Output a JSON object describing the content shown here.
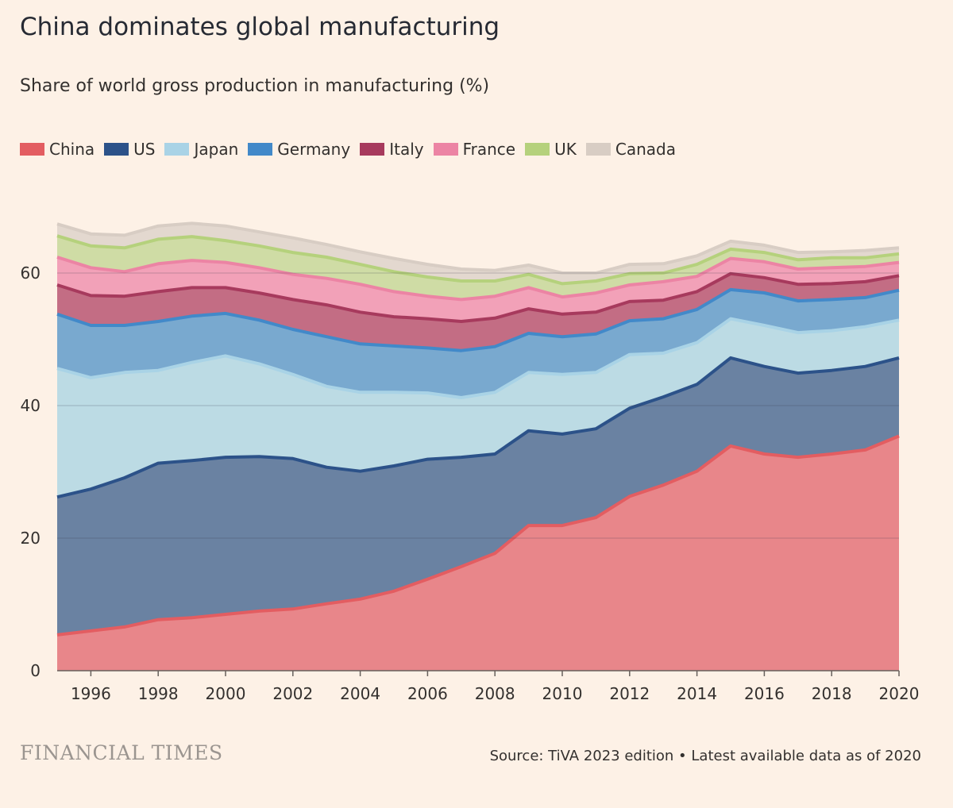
{
  "title": "China dominates global manufacturing",
  "subtitle": "Share of world gross production in manufacturing (%)",
  "footer": {
    "brand": "FINANCIAL TIMES",
    "source": "Source: TiVA 2023 edition • Latest available data as of 2020"
  },
  "background": "#fdf1e6",
  "chart_data": {
    "type": "area",
    "stacked": true,
    "title": "China dominates global manufacturing",
    "subtitle": "Share of world gross production in manufacturing (%)",
    "xlabel": "",
    "ylabel": "",
    "ylim": [
      0,
      70
    ],
    "xlim": [
      1995,
      2020
    ],
    "grid": true,
    "legend_position": "top-left",
    "yticks": [
      0,
      20,
      40,
      60
    ],
    "xticks": [
      1996,
      1998,
      2000,
      2002,
      2004,
      2006,
      2008,
      2010,
      2012,
      2014,
      2016,
      2018,
      2020
    ],
    "x": [
      1995,
      1996,
      1997,
      1998,
      1999,
      2000,
      2001,
      2002,
      2003,
      2004,
      2005,
      2006,
      2007,
      2008,
      2009,
      2010,
      2011,
      2012,
      2013,
      2014,
      2015,
      2016,
      2017,
      2018,
      2019,
      2020
    ],
    "series": [
      {
        "name": "China",
        "fill": "#e8868a",
        "line": "#e35d61",
        "values": [
          5.4,
          6.0,
          6.6,
          7.7,
          8.0,
          8.5,
          9.0,
          9.3,
          10.1,
          10.8,
          12.0,
          13.8,
          15.7,
          17.7,
          21.9,
          21.9,
          23.1,
          26.3,
          28.0,
          30.1,
          33.9,
          32.7,
          32.2,
          32.7,
          33.3,
          35.4
        ]
      },
      {
        "name": "US",
        "fill": "#6a82a2",
        "line": "#2c5289",
        "values": [
          20.8,
          21.4,
          22.5,
          23.6,
          23.7,
          23.7,
          23.3,
          22.7,
          20.6,
          19.3,
          18.9,
          18.1,
          16.5,
          15.0,
          14.3,
          13.8,
          13.4,
          13.3,
          13.3,
          13.1,
          13.3,
          13.2,
          12.7,
          12.6,
          12.6,
          11.8
        ]
      },
      {
        "name": "Japan",
        "fill": "#bcdbe4",
        "line": "#a9d3e6",
        "values": [
          19.4,
          16.8,
          15.9,
          14.0,
          14.8,
          15.3,
          14.0,
          12.7,
          12.2,
          11.9,
          11.1,
          10.0,
          9.0,
          9.3,
          8.8,
          9.0,
          8.5,
          8.1,
          6.6,
          6.3,
          5.9,
          6.2,
          6.1,
          6.0,
          6.0,
          5.7
        ]
      },
      {
        "name": "Germany",
        "fill": "#79a9cf",
        "line": "#4289c9",
        "values": [
          8.2,
          7.9,
          7.1,
          7.4,
          7.0,
          6.4,
          6.6,
          6.8,
          7.5,
          7.3,
          7.0,
          6.8,
          7.1,
          6.9,
          5.9,
          5.7,
          5.8,
          5.1,
          5.2,
          5.0,
          4.4,
          4.9,
          4.8,
          4.7,
          4.4,
          4.5
        ]
      },
      {
        "name": "Italy",
        "fill": "#c36d84",
        "line": "#a73a5d",
        "values": [
          4.4,
          4.5,
          4.4,
          4.5,
          4.3,
          3.9,
          4.1,
          4.5,
          4.8,
          4.8,
          4.4,
          4.4,
          4.4,
          4.3,
          3.7,
          3.4,
          3.3,
          2.9,
          2.8,
          2.7,
          2.4,
          2.3,
          2.5,
          2.4,
          2.4,
          2.2
        ]
      },
      {
        "name": "France",
        "fill": "#f2a1b8",
        "line": "#ec84a4",
        "values": [
          4.2,
          4.2,
          3.7,
          4.2,
          4.1,
          3.8,
          3.8,
          3.8,
          4.0,
          4.2,
          3.8,
          3.4,
          3.3,
          3.3,
          3.2,
          2.6,
          2.9,
          2.5,
          2.8,
          2.3,
          2.3,
          2.4,
          2.3,
          2.4,
          2.3,
          2.0
        ]
      },
      {
        "name": "UK",
        "fill": "#cfdca5",
        "line": "#b5d17c",
        "values": [
          3.2,
          3.3,
          3.6,
          3.7,
          3.6,
          3.3,
          3.3,
          3.3,
          3.2,
          3.0,
          3.0,
          2.9,
          2.8,
          2.3,
          2.0,
          2.0,
          1.8,
          1.7,
          1.3,
          1.8,
          1.4,
          1.4,
          1.4,
          1.5,
          1.3,
          1.3
        ]
      },
      {
        "name": "Canada",
        "fill": "#e3d8cf",
        "line": "#d8cdc4",
        "values": [
          1.8,
          1.8,
          1.9,
          2.0,
          2.0,
          2.2,
          2.1,
          2.2,
          1.9,
          1.9,
          2.0,
          1.9,
          1.8,
          1.6,
          1.4,
          1.6,
          1.2,
          1.4,
          1.4,
          1.3,
          1.2,
          1.1,
          1.1,
          0.9,
          1.1,
          0.9
        ]
      }
    ]
  }
}
